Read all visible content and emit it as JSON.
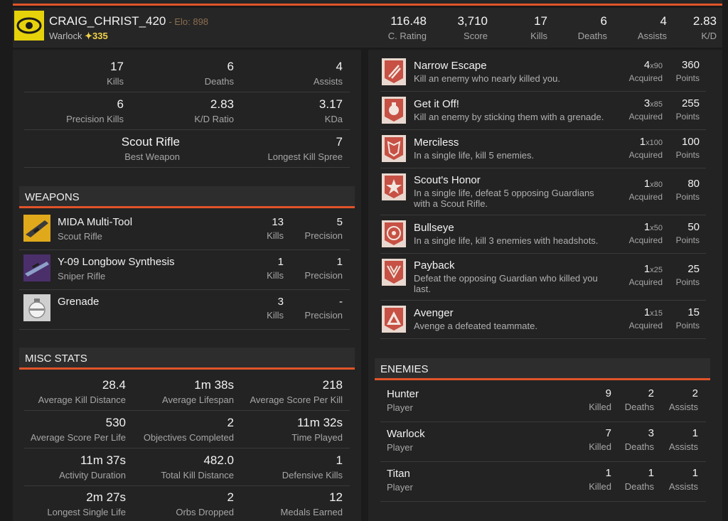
{
  "player": {
    "name": "CRAIG_CHRIST_420",
    "elo": "- Elo: 898",
    "class": "Warlock",
    "light_icon": "✦",
    "light": "335"
  },
  "header_stats": [
    {
      "value": "116.48",
      "label": "C. Rating"
    },
    {
      "value": "3,710",
      "label": "Score"
    },
    {
      "value": "17",
      "label": "Kills"
    },
    {
      "value": "6",
      "label": "Deaths"
    },
    {
      "value": "4",
      "label": "Assists"
    },
    {
      "value": "2.83",
      "label": "K/D"
    }
  ],
  "summary": [
    [
      {
        "value": "17",
        "label": "Kills"
      },
      {
        "value": "6",
        "label": "Deaths"
      },
      {
        "value": "4",
        "label": "Assists"
      }
    ],
    [
      {
        "value": "6",
        "label": "Precision Kills"
      },
      {
        "value": "2.83",
        "label": "K/D Ratio"
      },
      {
        "value": "3.17",
        "label": "KDa"
      }
    ],
    [
      {
        "value": "Scout Rifle",
        "label": "Best Weapon"
      },
      {
        "value": "7",
        "label": "Longest Kill Spree"
      }
    ]
  ],
  "weapons": {
    "title": "WEAPONS",
    "items": [
      {
        "name": "MIDA Multi-Tool",
        "type": "Scout Rifle",
        "kills": "13",
        "kills_label": "Kills",
        "precision": "5",
        "precision_label": "Precision"
      },
      {
        "name": "Y-09 Longbow Synthesis",
        "type": "Sniper Rifle",
        "kills": "1",
        "kills_label": "Kills",
        "precision": "1",
        "precision_label": "Precision"
      },
      {
        "name": "Grenade",
        "type": "",
        "kills": "3",
        "kills_label": "Kills",
        "precision": "-",
        "precision_label": "Precision"
      }
    ]
  },
  "misc": {
    "title": "MISC STATS",
    "rows": [
      [
        {
          "value": "28.4",
          "label": "Average Kill Distance"
        },
        {
          "value": "1m 38s",
          "label": "Average Lifespan"
        },
        {
          "value": "218",
          "label": "Average Score Per Kill"
        }
      ],
      [
        {
          "value": "530",
          "label": "Average Score Per Life"
        },
        {
          "value": "2",
          "label": "Objectives Completed"
        },
        {
          "value": "11m 32s",
          "label": "Time Played"
        }
      ],
      [
        {
          "value": "11m 37s",
          "label": "Activity Duration"
        },
        {
          "value": "482.0",
          "label": "Total Kill Distance"
        },
        {
          "value": "1",
          "label": "Defensive Kills"
        }
      ],
      [
        {
          "value": "2m 27s",
          "label": "Longest Single Life"
        },
        {
          "value": "2",
          "label": "Orbs Dropped"
        },
        {
          "value": "12",
          "label": "Medals Earned"
        }
      ]
    ]
  },
  "medals": [
    {
      "name": "Narrow Escape",
      "desc": "Kill an enemy who nearly killed you.",
      "count": "4",
      "mult": "x90",
      "acq": "Acquired",
      "points": "360",
      "pts_label": "Points",
      "icon": "narrow-escape-medal-icon"
    },
    {
      "name": "Get it Off!",
      "desc": "Kill an enemy by sticking them with a grenade.",
      "count": "3",
      "mult": "x85",
      "acq": "Acquired",
      "points": "255",
      "pts_label": "Points",
      "icon": "grenade-medal-icon"
    },
    {
      "name": "Merciless",
      "desc": "In a single life, kill 5 enemies.",
      "count": "1",
      "mult": "x100",
      "acq": "Acquired",
      "points": "100",
      "pts_label": "Points",
      "icon": "merciless-medal-icon"
    },
    {
      "name": "Scout's Honor",
      "desc": "In a single life, defeat 5 opposing Guardians with a Scout Rifle.",
      "count": "1",
      "mult": "x80",
      "acq": "Acquired",
      "points": "80",
      "pts_label": "Points",
      "icon": "scouts-honor-medal-icon"
    },
    {
      "name": "Bullseye",
      "desc": "In a single life, kill 3 enemies with headshots.",
      "count": "1",
      "mult": "x50",
      "acq": "Acquired",
      "points": "50",
      "pts_label": "Points",
      "icon": "bullseye-medal-icon"
    },
    {
      "name": "Payback",
      "desc": "Defeat the opposing Guardian who killed you last.",
      "count": "1",
      "mult": "x25",
      "acq": "Acquired",
      "points": "25",
      "pts_label": "Points",
      "icon": "payback-medal-icon"
    },
    {
      "name": "Avenger",
      "desc": "Avenge a defeated teammate.",
      "count": "1",
      "mult": "x15",
      "acq": "Acquired",
      "points": "15",
      "pts_label": "Points",
      "icon": "avenger-medal-icon"
    }
  ],
  "enemies": {
    "title": "ENEMIES",
    "items": [
      {
        "name": "Hunter",
        "type": "Player",
        "killed": "9",
        "killed_label": "Killed",
        "deaths": "2",
        "deaths_label": "Deaths",
        "assists": "2",
        "assists_label": "Assists"
      },
      {
        "name": "Warlock",
        "type": "Player",
        "killed": "7",
        "killed_label": "Killed",
        "deaths": "3",
        "deaths_label": "Deaths",
        "assists": "1",
        "assists_label": "Assists"
      },
      {
        "name": "Titan",
        "type": "Player",
        "killed": "1",
        "killed_label": "Killed",
        "deaths": "1",
        "deaths_label": "Deaths",
        "assists": "1",
        "assists_label": "Assists"
      }
    ]
  },
  "colors": {
    "accent": "#e0542a",
    "light": "#f0d34a",
    "emblem": "#e6d20a"
  }
}
